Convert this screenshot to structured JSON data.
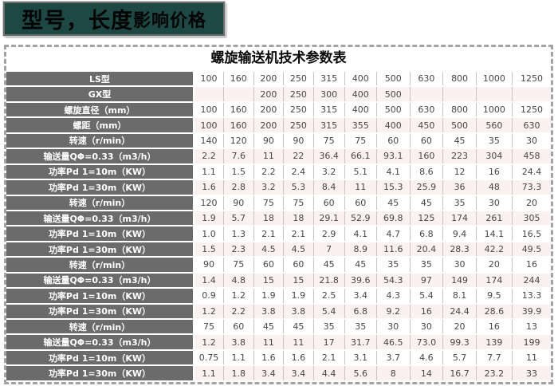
{
  "banner": {
    "text_main": "型号，长度",
    "text_sub": "影响价格",
    "bg_color": "#1d4844",
    "text_color": "#050505"
  },
  "table": {
    "title": "螺旋输送机技术参数表",
    "column_count": 11,
    "label_header_color": "#6b6b6b",
    "alt_row_color": "#fbf1f0",
    "rows": [
      {
        "label": "LS型",
        "values": [
          "100",
          "160",
          "200",
          "250",
          "315",
          "400",
          "500",
          "630",
          "800",
          "1000",
          "1250"
        ]
      },
      {
        "label": "GX型",
        "values": [
          "",
          "",
          "200",
          "250",
          "300",
          "400",
          "500",
          "",
          "",
          "",
          ""
        ]
      },
      {
        "label": "螺旋直径（mm）",
        "values": [
          "100",
          "160",
          "200",
          "250",
          "315",
          "400",
          "500",
          "630",
          "800",
          "1000",
          "1250"
        ]
      },
      {
        "label": "螺距（mm）",
        "values": [
          "100",
          "160",
          "200",
          "250",
          "315",
          "355",
          "400",
          "450",
          "500",
          "560",
          "630"
        ]
      },
      {
        "label": "转速（r/min）",
        "values": [
          "140",
          "120",
          "90",
          "90",
          "75",
          "75",
          "60",
          "60",
          "45",
          "35",
          "30"
        ]
      },
      {
        "label": "输送量QΦ=0.33（m3/h）",
        "values": [
          "2.2",
          "7.6",
          "11",
          "22",
          "36.4",
          "66.1",
          "93.1",
          "160",
          "223",
          "304",
          "458"
        ]
      },
      {
        "label": "功率Pd 1=10m（KW）",
        "values": [
          "1.1",
          "1.5",
          "2.2",
          "2.4",
          "3.2",
          "5.1",
          "4.1",
          "8.6",
          "12",
          "16",
          "24.4"
        ]
      },
      {
        "label": "功率Pd 1=30m（KW）",
        "values": [
          "1.6",
          "2.8",
          "3.2",
          "5.3",
          "8.4",
          "11",
          "15.3",
          "25.9",
          "36",
          "48",
          "73.3"
        ]
      },
      {
        "label": "转速（r/min）",
        "values": [
          "120",
          "90",
          "75",
          "75",
          "60",
          "60",
          "45",
          "45",
          "35",
          "30",
          "20"
        ]
      },
      {
        "label": "输送量QΦ=0.33（m3/h）",
        "values": [
          "1.9",
          "5.7",
          "18",
          "18",
          "29.1",
          "52.9",
          "69.8",
          "125",
          "174",
          "261",
          "305"
        ]
      },
      {
        "label": "功率Pd 1=10m（KW）",
        "values": [
          "1.0",
          "1.3",
          "2.1",
          "2.1",
          "2.9",
          "4.1",
          "4.7",
          "6.8",
          "9.4",
          "14.1",
          "16.5"
        ]
      },
      {
        "label": "功率Pd 1=30m（KW）",
        "values": [
          "1.5",
          "2.3",
          "4.5",
          "4.5",
          "7",
          "8.9",
          "11.6",
          "20.4",
          "28.3",
          "42.2",
          "49.5"
        ]
      },
      {
        "label": "转速（r/min）",
        "values": [
          "90",
          "75",
          "60",
          "60",
          "45",
          "45",
          "35",
          "35",
          "30",
          "20",
          "16"
        ]
      },
      {
        "label": "输送量QΦ=0.33（m3/h）",
        "values": [
          "1.4",
          "4.8",
          "15",
          "15",
          "21.8",
          "39.6",
          "54.3",
          "97",
          "149",
          "174",
          "244"
        ]
      },
      {
        "label": "功率Pd 1=10m（KW）",
        "values": [
          "0.9",
          "1.2",
          "1.9",
          "1.9",
          "2.5",
          "3.4",
          "4.3",
          "5.4",
          "8.1",
          "9.5",
          "13.3"
        ]
      },
      {
        "label": "功率Pd 1=30m（KW）",
        "values": [
          "1.2",
          "2.2",
          "3.8",
          "3.8",
          "5.4",
          "6.8",
          "9.2",
          "16",
          "24.4",
          "28.6",
          "39.9"
        ]
      },
      {
        "label": "转速（r/min）",
        "values": [
          "75",
          "60",
          "45",
          "45",
          "35",
          "35",
          "30",
          "30",
          "20",
          "16",
          "13"
        ]
      },
      {
        "label": "输送量QΦ=0.33（m3/h）",
        "values": [
          "1.2",
          "3.8",
          "11",
          "11",
          "17",
          "31.7",
          "46.5",
          "73.0",
          "99.3",
          "139",
          "199"
        ]
      },
      {
        "label": "功率Pd 1=10m（KW）",
        "values": [
          "0.75",
          "1.1",
          "1.6",
          "1.6",
          "2.1",
          "3.1",
          "3.7",
          "4.6",
          "5.7",
          "7.7",
          "11"
        ]
      },
      {
        "label": "功率Pd 1=30m（KW）",
        "values": [
          "1.1",
          "1.8",
          "3.4",
          "3.4",
          "4.4",
          "5.6",
          "8",
          "14",
          "16.7",
          "23.2",
          "33"
        ]
      }
    ]
  }
}
